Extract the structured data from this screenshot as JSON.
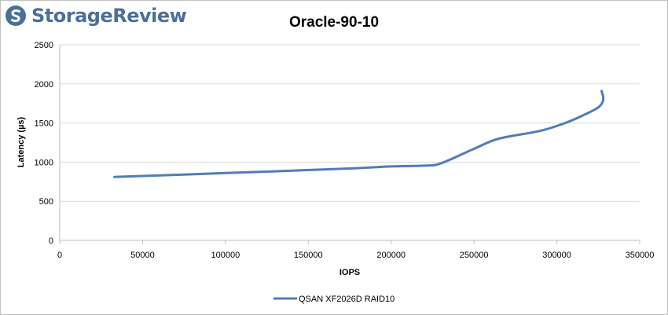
{
  "brand": {
    "logo_text": "StorageReview",
    "logo_color": "#4a6f9a"
  },
  "chart_data": {
    "type": "line",
    "title": "Oracle-90-10",
    "xlabel": "IOPS",
    "ylabel": "Latency (µs)",
    "xlim": [
      0,
      350000
    ],
    "ylim": [
      0,
      2500
    ],
    "xticks": [
      0,
      50000,
      100000,
      150000,
      200000,
      250000,
      300000,
      350000
    ],
    "yticks": [
      0,
      500,
      1000,
      1500,
      2000,
      2500
    ],
    "xtick_labels": [
      "0",
      "50000",
      "100000",
      "150000",
      "200000",
      "250000",
      "300000",
      "350000"
    ],
    "ytick_labels": [
      "0",
      "500",
      "1000",
      "1500",
      "2000",
      "2500"
    ],
    "grid": "horizontal",
    "legend_position": "bottom",
    "series": [
      {
        "name": "QSAN XF2026D RAID10",
        "color": "#4f7dba",
        "x": [
          33000,
          100000,
          170000,
          200000,
          220000,
          230000,
          250000,
          265000,
          290000,
          305000,
          315000,
          325000,
          328000,
          327000
        ],
        "y": [
          810,
          860,
          915,
          945,
          955,
          985,
          1170,
          1300,
          1400,
          1500,
          1590,
          1700,
          1800,
          1910
        ]
      }
    ]
  }
}
